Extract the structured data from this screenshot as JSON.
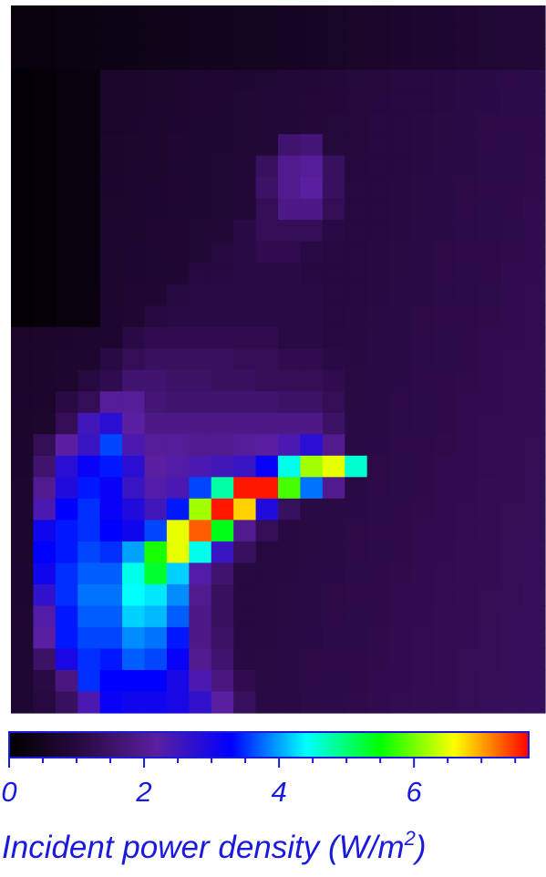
{
  "chart_data": {
    "type": "heatmap",
    "title": "",
    "rows": 33,
    "cols": 24,
    "value_range": [
      0,
      7.7
    ],
    "colormap": [
      "#000000",
      "#2a0a45",
      "#5a1fa0",
      "#0000ff",
      "#00ffff",
      "#00ff00",
      "#ffff00",
      "#ff0000"
    ],
    "colorbar": {
      "label_main": "Incident power density (W/m",
      "label_sup": "2",
      "label_close": ")",
      "ticks": [
        0,
        2,
        4,
        6
      ],
      "tick_labels": [
        "0",
        "2",
        "4",
        "6"
      ],
      "range": [
        0,
        7.7
      ]
    },
    "z_sparse": [
      [
        6,
        12,
        1.6
      ],
      [
        6,
        13,
        1.7
      ],
      [
        7,
        11,
        1.4
      ],
      [
        7,
        12,
        2.0
      ],
      [
        7,
        13,
        2.1
      ],
      [
        7,
        14,
        1.4
      ],
      [
        8,
        11,
        1.5
      ],
      [
        8,
        12,
        2.0
      ],
      [
        8,
        13,
        2.2
      ],
      [
        8,
        14,
        1.4
      ],
      [
        9,
        11,
        1.3
      ],
      [
        9,
        12,
        1.9
      ],
      [
        9,
        13,
        1.9
      ],
      [
        9,
        14,
        1.3
      ],
      [
        10,
        10,
        1.1
      ],
      [
        10,
        11,
        1.3
      ],
      [
        10,
        12,
        1.3
      ],
      [
        10,
        13,
        1.3
      ],
      [
        10,
        14,
        1.1
      ],
      [
        11,
        9,
        1.0
      ],
      [
        11,
        10,
        1.1
      ],
      [
        11,
        11,
        1.2
      ],
      [
        11,
        12,
        1.2
      ],
      [
        11,
        13,
        1.1
      ],
      [
        11,
        14,
        1.0
      ],
      [
        12,
        8,
        1.0
      ],
      [
        12,
        9,
        1.0
      ],
      [
        12,
        10,
        1.1
      ],
      [
        12,
        11,
        1.1
      ],
      [
        12,
        12,
        1.1
      ],
      [
        12,
        13,
        1.0
      ],
      [
        12,
        14,
        1.0
      ],
      [
        13,
        7,
        1.0
      ],
      [
        13,
        8,
        1.1
      ],
      [
        13,
        9,
        1.1
      ],
      [
        13,
        10,
        1.1
      ],
      [
        13,
        11,
        1.1
      ],
      [
        13,
        12,
        1.1
      ],
      [
        13,
        13,
        1.1
      ],
      [
        13,
        14,
        1.0
      ],
      [
        14,
        6,
        1.0
      ],
      [
        14,
        7,
        1.1
      ],
      [
        14,
        8,
        1.1
      ],
      [
        14,
        9,
        1.1
      ],
      [
        14,
        10,
        1.1
      ],
      [
        14,
        11,
        1.1
      ],
      [
        14,
        12,
        1.1
      ],
      [
        14,
        13,
        1.1
      ],
      [
        14,
        14,
        1.0
      ],
      [
        15,
        5,
        1.1
      ],
      [
        15,
        6,
        1.2
      ],
      [
        15,
        7,
        1.2
      ],
      [
        15,
        8,
        1.2
      ],
      [
        15,
        9,
        1.2
      ],
      [
        15,
        10,
        1.2
      ],
      [
        15,
        11,
        1.2
      ],
      [
        15,
        12,
        1.1
      ],
      [
        15,
        13,
        1.1
      ],
      [
        15,
        14,
        1.0
      ],
      [
        16,
        4,
        1.1
      ],
      [
        16,
        5,
        1.3
      ],
      [
        16,
        6,
        1.4
      ],
      [
        16,
        7,
        1.4
      ],
      [
        16,
        8,
        1.4
      ],
      [
        16,
        9,
        1.4
      ],
      [
        16,
        10,
        1.3
      ],
      [
        16,
        11,
        1.3
      ],
      [
        16,
        12,
        1.2
      ],
      [
        16,
        13,
        1.2
      ],
      [
        16,
        14,
        1.1
      ],
      [
        17,
        3,
        1.0
      ],
      [
        17,
        4,
        1.2
      ],
      [
        17,
        5,
        1.6
      ],
      [
        17,
        6,
        1.6
      ],
      [
        17,
        7,
        1.5
      ],
      [
        17,
        8,
        1.5
      ],
      [
        17,
        9,
        1.4
      ],
      [
        17,
        10,
        1.4
      ],
      [
        17,
        11,
        1.3
      ],
      [
        17,
        12,
        1.3
      ],
      [
        17,
        13,
        1.3
      ],
      [
        17,
        14,
        1.2
      ],
      [
        18,
        2,
        1.1
      ],
      [
        18,
        3,
        1.3
      ],
      [
        18,
        4,
        2.1
      ],
      [
        18,
        5,
        2.1
      ],
      [
        18,
        6,
        1.7
      ],
      [
        18,
        7,
        1.6
      ],
      [
        18,
        8,
        1.6
      ],
      [
        18,
        9,
        1.6
      ],
      [
        18,
        10,
        1.6
      ],
      [
        18,
        11,
        1.6
      ],
      [
        18,
        12,
        1.5
      ],
      [
        18,
        13,
        1.5
      ],
      [
        18,
        14,
        1.3
      ],
      [
        19,
        2,
        1.3
      ],
      [
        19,
        3,
        2.5
      ],
      [
        19,
        4,
        2.8
      ],
      [
        19,
        5,
        2.2
      ],
      [
        19,
        6,
        1.9
      ],
      [
        19,
        7,
        1.9
      ],
      [
        19,
        8,
        1.9
      ],
      [
        19,
        9,
        1.9
      ],
      [
        19,
        10,
        1.9
      ],
      [
        19,
        11,
        1.9
      ],
      [
        19,
        12,
        1.9
      ],
      [
        19,
        13,
        1.9
      ],
      [
        19,
        14,
        1.5
      ],
      [
        20,
        1,
        1.3
      ],
      [
        20,
        2,
        2.2
      ],
      [
        20,
        3,
        2.6
      ],
      [
        20,
        4,
        3.6
      ],
      [
        20,
        5,
        2.4
      ],
      [
        20,
        6,
        2.1
      ],
      [
        20,
        7,
        2.1
      ],
      [
        20,
        8,
        2.0
      ],
      [
        20,
        9,
        2.0
      ],
      [
        20,
        10,
        2.1
      ],
      [
        20,
        11,
        2.2
      ],
      [
        20,
        12,
        2.4
      ],
      [
        20,
        13,
        2.8
      ],
      [
        20,
        14,
        2.0
      ],
      [
        21,
        1,
        1.6
      ],
      [
        21,
        2,
        2.8
      ],
      [
        21,
        3,
        3.2
      ],
      [
        21,
        4,
        3.4
      ],
      [
        21,
        5,
        2.8
      ],
      [
        21,
        6,
        2.2
      ],
      [
        21,
        7,
        2.3
      ],
      [
        21,
        8,
        2.4
      ],
      [
        21,
        9,
        2.5
      ],
      [
        21,
        10,
        2.6
      ],
      [
        21,
        11,
        3.2
      ],
      [
        21,
        12,
        4.5
      ],
      [
        21,
        13,
        6.2
      ],
      [
        21,
        14,
        6.5
      ],
      [
        21,
        15,
        4.6
      ],
      [
        22,
        1,
        2.0
      ],
      [
        22,
        2,
        2.9
      ],
      [
        22,
        3,
        3.4
      ],
      [
        22,
        4,
        3.2
      ],
      [
        22,
        5,
        2.6
      ],
      [
        22,
        6,
        2.3
      ],
      [
        22,
        7,
        2.4
      ],
      [
        22,
        8,
        3.6
      ],
      [
        22,
        9,
        4.8
      ],
      [
        22,
        10,
        7.6
      ],
      [
        22,
        11,
        7.6
      ],
      [
        22,
        12,
        5.8
      ],
      [
        22,
        13,
        3.8
      ],
      [
        22,
        14,
        2.0
      ],
      [
        23,
        1,
        2.4
      ],
      [
        23,
        2,
        3.3
      ],
      [
        23,
        3,
        3.5
      ],
      [
        23,
        4,
        3.2
      ],
      [
        23,
        5,
        2.9
      ],
      [
        23,
        6,
        2.5
      ],
      [
        23,
        7,
        3.4
      ],
      [
        23,
        8,
        6.2
      ],
      [
        23,
        9,
        7.6
      ],
      [
        23,
        10,
        6.8
      ],
      [
        23,
        11,
        2.9
      ],
      [
        23,
        12,
        1.4
      ],
      [
        23,
        13,
        1.1
      ],
      [
        24,
        1,
        3.1
      ],
      [
        24,
        2,
        3.4
      ],
      [
        24,
        3,
        3.5
      ],
      [
        24,
        4,
        3.3
      ],
      [
        24,
        5,
        3.1
      ],
      [
        24,
        6,
        3.6
      ],
      [
        24,
        7,
        6.5
      ],
      [
        24,
        8,
        7.3
      ],
      [
        24,
        9,
        5.4
      ],
      [
        24,
        10,
        2.0
      ],
      [
        24,
        11,
        1.3
      ],
      [
        25,
        1,
        3.3
      ],
      [
        25,
        2,
        3.4
      ],
      [
        25,
        3,
        3.6
      ],
      [
        25,
        4,
        3.5
      ],
      [
        25,
        5,
        4.0
      ],
      [
        25,
        6,
        5.6
      ],
      [
        25,
        7,
        6.5
      ],
      [
        25,
        8,
        4.5
      ],
      [
        25,
        9,
        2.6
      ],
      [
        25,
        10,
        1.4
      ],
      [
        26,
        1,
        3.1
      ],
      [
        26,
        2,
        3.5
      ],
      [
        26,
        3,
        3.7
      ],
      [
        26,
        4,
        3.7
      ],
      [
        26,
        5,
        4.5
      ],
      [
        26,
        6,
        5.3
      ],
      [
        26,
        7,
        4.2
      ],
      [
        26,
        8,
        2.3
      ],
      [
        26,
        9,
        1.6
      ],
      [
        27,
        1,
        2.7
      ],
      [
        27,
        2,
        3.5
      ],
      [
        27,
        3,
        3.8
      ],
      [
        27,
        4,
        3.8
      ],
      [
        27,
        5,
        4.4
      ],
      [
        27,
        6,
        4.3
      ],
      [
        27,
        7,
        3.9
      ],
      [
        27,
        8,
        2.0
      ],
      [
        27,
        9,
        1.4
      ],
      [
        28,
        1,
        2.3
      ],
      [
        28,
        2,
        3.4
      ],
      [
        28,
        3,
        3.7
      ],
      [
        28,
        4,
        3.7
      ],
      [
        28,
        5,
        4.2
      ],
      [
        28,
        6,
        4.1
      ],
      [
        28,
        7,
        3.7
      ],
      [
        28,
        8,
        1.9
      ],
      [
        28,
        9,
        1.4
      ],
      [
        29,
        1,
        2.2
      ],
      [
        29,
        2,
        3.4
      ],
      [
        29,
        3,
        3.6
      ],
      [
        29,
        4,
        3.6
      ],
      [
        29,
        5,
        3.9
      ],
      [
        29,
        6,
        3.8
      ],
      [
        29,
        7,
        3.4
      ],
      [
        29,
        8,
        1.9
      ],
      [
        29,
        9,
        1.5
      ],
      [
        30,
        1,
        1.5
      ],
      [
        30,
        2,
        3.0
      ],
      [
        30,
        3,
        3.5
      ],
      [
        30,
        4,
        3.4
      ],
      [
        30,
        5,
        3.7
      ],
      [
        30,
        6,
        3.6
      ],
      [
        30,
        7,
        3.2
      ],
      [
        30,
        8,
        2.0
      ],
      [
        30,
        9,
        1.6
      ],
      [
        31,
        1,
        1.1
      ],
      [
        31,
        2,
        1.8
      ],
      [
        31,
        3,
        3.5
      ],
      [
        31,
        4,
        3.3
      ],
      [
        31,
        5,
        3.3
      ],
      [
        31,
        6,
        3.3
      ],
      [
        31,
        7,
        3.0
      ],
      [
        31,
        8,
        2.4
      ],
      [
        31,
        9,
        1.8
      ],
      [
        31,
        10,
        1.2
      ],
      [
        32,
        1,
        1.0
      ],
      [
        32,
        2,
        1.4
      ],
      [
        32,
        3,
        2.4
      ],
      [
        32,
        4,
        3.2
      ],
      [
        32,
        5,
        3.1
      ],
      [
        32,
        6,
        3.1
      ],
      [
        32,
        7,
        3.0
      ],
      [
        32,
        8,
        2.7
      ],
      [
        32,
        9,
        2.2
      ],
      [
        32,
        10,
        1.4
      ]
    ]
  }
}
